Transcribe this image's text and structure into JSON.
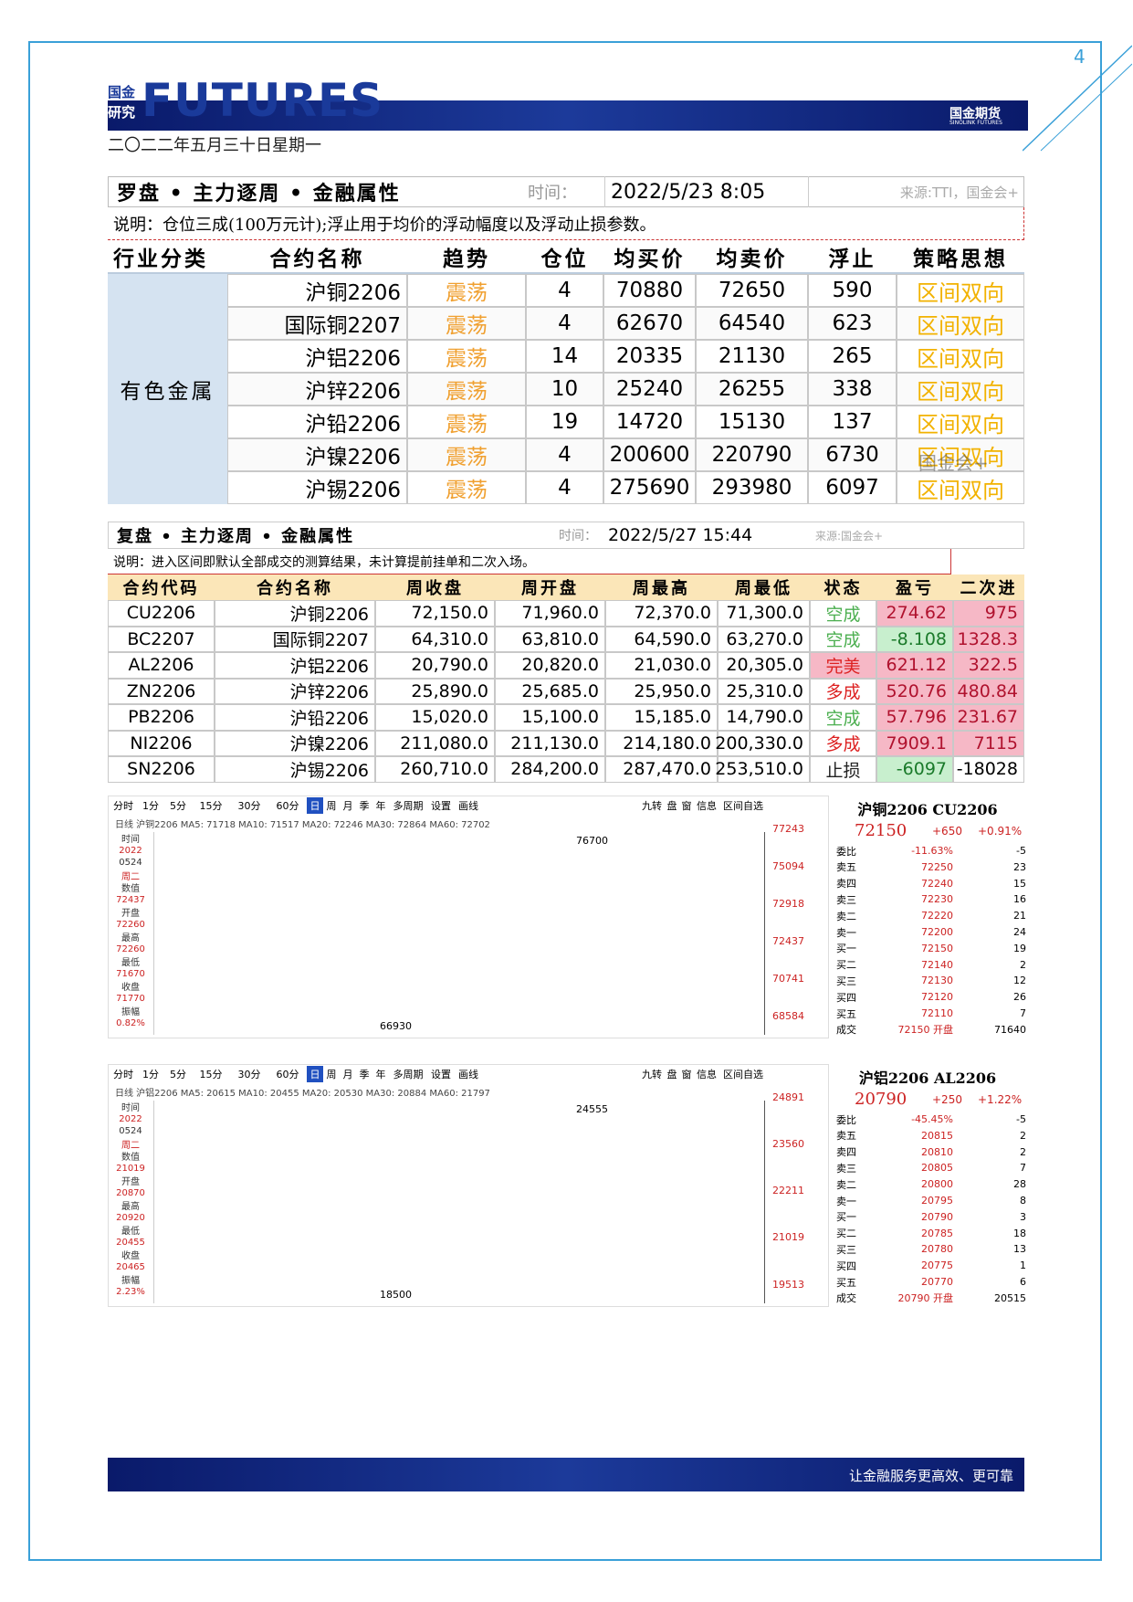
{
  "header": {
    "logo_small": [
      "国金",
      "研究"
    ],
    "logo": "FUTURES",
    "brand": "国金期货",
    "brand_en": "SINOLINK FUTURES",
    "date": "二〇二二年五月三十日星期一",
    "page_number": "4"
  },
  "table1": {
    "title": "罗盘 • 主力逐周 • 金融属性",
    "time_label": "时间：",
    "time": "2022/5/23 8:05",
    "source": "来源:TTI，国金会+",
    "note": "说明：仓位三成(100万元计);浮止用于均价的浮动幅度以及浮动止损参数。",
    "headers": [
      "行业分类",
      "合约名称",
      "趋势",
      "仓位",
      "均买价",
      "均卖价",
      "浮止",
      "策略思想"
    ],
    "category": "有色金属",
    "watermark": "国金会+",
    "rows": [
      [
        "沪铜2206",
        "震荡",
        4,
        70880,
        72650,
        590,
        "区间双向"
      ],
      [
        "国际铜2207",
        "震荡",
        4,
        62670,
        64540,
        623,
        "区间双向"
      ],
      [
        "沪铝2206",
        "震荡",
        14,
        20335,
        21130,
        265,
        "区间双向"
      ],
      [
        "沪锌2206",
        "震荡",
        10,
        25240,
        26255,
        338,
        "区间双向"
      ],
      [
        "沪铅2206",
        "震荡",
        19,
        14720,
        15130,
        137,
        "区间双向"
      ],
      [
        "沪镍2206",
        "震荡",
        4,
        200600,
        220790,
        6730,
        "区间双向"
      ],
      [
        "沪锡2206",
        "震荡",
        4,
        275690,
        293980,
        6097,
        "区间双向"
      ]
    ]
  },
  "table2": {
    "title": "复盘 • 主力逐周 • 金融属性",
    "time_label": "时间：",
    "time": "2022/5/27 15:44",
    "source": "来源:国金会+",
    "note": "说明：进入区间即默认全部成交的测算结果，未计算提前挂单和二次入场。",
    "headers": [
      "合约代码",
      "合约名称",
      "周收盘",
      "周开盘",
      "周最高",
      "周最低",
      "状态",
      "盈亏",
      "二次进"
    ],
    "rows": [
      [
        "CU2206",
        "沪铜2206",
        "72,150.0",
        "71,960.0",
        "72,370.0",
        "71,300.0",
        "空成",
        "274.62",
        "975"
      ],
      [
        "BC2207",
        "国际铜2207",
        "64,310.0",
        "63,810.0",
        "64,590.0",
        "63,270.0",
        "空成",
        "-8.108",
        "1328.3"
      ],
      [
        "AL2206",
        "沪铝2206",
        "20,790.0",
        "20,820.0",
        "21,030.0",
        "20,305.0",
        "完美",
        "621.12",
        "322.5"
      ],
      [
        "ZN2206",
        "沪锌2206",
        "25,890.0",
        "25,685.0",
        "25,950.0",
        "25,310.0",
        "多成",
        "520.76",
        "480.84"
      ],
      [
        "PB2206",
        "沪铅2206",
        "15,020.0",
        "15,100.0",
        "15,185.0",
        "14,790.0",
        "空成",
        "57.796",
        "231.67"
      ],
      [
        "NI2206",
        "沪镍2206",
        "211,080.0",
        "211,130.0",
        "214,180.0",
        "200,330.0",
        "多成",
        "7909.1",
        "7115"
      ],
      [
        "SN2206",
        "沪锡2206",
        "260,710.0",
        "284,200.0",
        "287,470.0",
        "253,510.0",
        "止损",
        "-6097",
        "-18028"
      ]
    ]
  },
  "charts": [
    {
      "toolbar": [
        "分时",
        "1分",
        "5分",
        "15分",
        "30分",
        "60分",
        "日",
        "周",
        "月",
        "季",
        "年",
        "多周期",
        "设置",
        "画线"
      ],
      "toolbar_right": [
        "九转",
        "盘",
        "窗",
        "信息",
        "区间自选"
      ],
      "indicator": "日线 沪铜2206 MA5: 71718 MA10: 71517 MA20: 72246 MA30: 72864 MA60: 72702",
      "info": [
        "时间",
        "2022",
        "0524",
        "周二",
        "数值",
        "72437",
        "开盘",
        "72260",
        "最高",
        "72260",
        "最低",
        "71670",
        "收盘",
        "71770",
        "振幅",
        "0.82%"
      ],
      "axis": [
        "77243",
        "75094",
        "72918",
        "72437",
        "70741",
        "68584"
      ],
      "high": "76700",
      "low": "66930",
      "quote": {
        "title": "沪铜2206 CU2206",
        "price": "72150",
        "change": "+650",
        "pct": "+0.91%",
        "rows": [
          [
            "委比",
            "-11.63%",
            "-5"
          ],
          [
            "卖五",
            "72250",
            "23"
          ],
          [
            "卖四",
            "72240",
            "15"
          ],
          [
            "卖三",
            "72230",
            "16"
          ],
          [
            "卖二",
            "72220",
            "21"
          ],
          [
            "卖一",
            "72200",
            "24"
          ],
          [
            "买一",
            "72150",
            "19"
          ],
          [
            "买二",
            "72140",
            "2"
          ],
          [
            "买三",
            "72130",
            "12"
          ],
          [
            "买四",
            "72120",
            "26"
          ],
          [
            "买五",
            "72110",
            "7"
          ],
          [
            "成交",
            "72150 开盘",
            "71640"
          ]
        ]
      }
    },
    {
      "toolbar": [
        "分时",
        "1分",
        "5分",
        "15分",
        "30分",
        "60分",
        "日",
        "周",
        "月",
        "季",
        "年",
        "多周期",
        "设置",
        "画线"
      ],
      "toolbar_right": [
        "九转",
        "盘",
        "窗",
        "信息",
        "区间自选"
      ],
      "indicator": "日线 沪铝2206 MA5: 20615 MA10: 20455 MA20: 20530 MA30: 20884 MA60: 21797",
      "info": [
        "时间",
        "2022",
        "0524",
        "周二",
        "数值",
        "21019",
        "开盘",
        "20870",
        "最高",
        "20920",
        "最低",
        "20455",
        "收盘",
        "20465",
        "振幅",
        "2.23%"
      ],
      "axis": [
        "24891",
        "23560",
        "22211",
        "21019",
        "19513"
      ],
      "high": "24555",
      "low": "18500",
      "quote": {
        "title": "沪铝2206 AL2206",
        "price": "20790",
        "change": "+250",
        "pct": "+1.22%",
        "rows": [
          [
            "委比",
            "-45.45%",
            "-5"
          ],
          [
            "卖五",
            "20815",
            "2"
          ],
          [
            "卖四",
            "20810",
            "2"
          ],
          [
            "卖三",
            "20805",
            "7"
          ],
          [
            "卖二",
            "20800",
            "28"
          ],
          [
            "卖一",
            "20795",
            "8"
          ],
          [
            "买一",
            "20790",
            "3"
          ],
          [
            "买二",
            "20785",
            "18"
          ],
          [
            "买三",
            "20780",
            "13"
          ],
          [
            "买四",
            "20775",
            "1"
          ],
          [
            "买五",
            "20770",
            "6"
          ],
          [
            "成交",
            "20790 开盘",
            "20515"
          ]
        ]
      }
    }
  ],
  "footer": {
    "slogan": "让金融服务更高效、更可靠"
  }
}
